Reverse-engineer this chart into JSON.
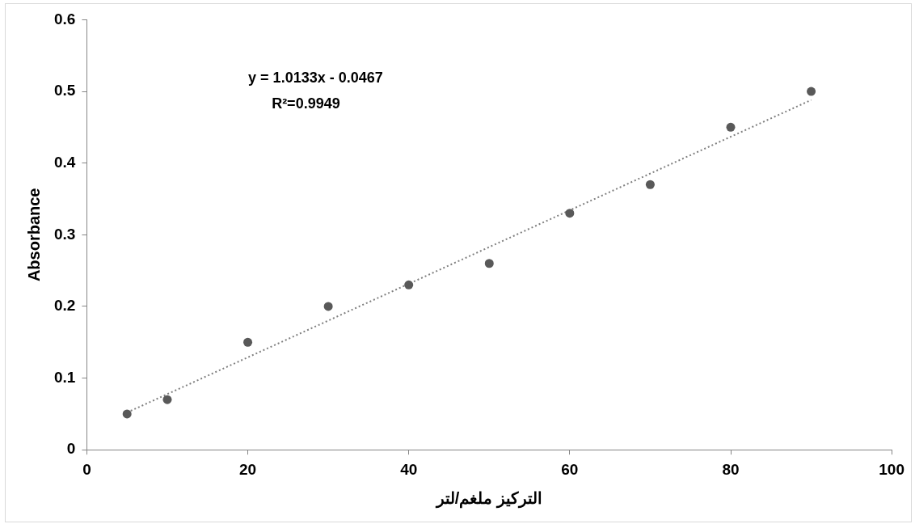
{
  "chart_data": {
    "type": "scatter",
    "xlabel": "التركيز ملغم/لتر",
    "ylabel": "Absorbance",
    "xlim": [
      0,
      100
    ],
    "xticks": [
      0,
      20,
      40,
      60,
      80,
      100
    ],
    "ylim": [
      0,
      0.6
    ],
    "yticks": [
      0,
      0.1,
      0.2,
      0.3,
      0.4,
      0.5,
      0.6
    ],
    "marker": "circle",
    "series": [
      {
        "type": "scatter",
        "color": "#595959",
        "x": [
          5,
          10,
          20,
          30,
          40,
          50,
          60,
          70,
          80,
          90
        ],
        "values": [
          0.05,
          0.07,
          0.15,
          0.2,
          0.23,
          0.26,
          0.33,
          0.37,
          0.45,
          0.5
        ]
      },
      {
        "type": "line",
        "color": "#7f7f7f",
        "line_style": "dotted",
        "marker": "none",
        "x": [
          5,
          90
        ],
        "values": [
          0.052,
          0.488
        ]
      }
    ],
    "annotations": [
      "y = 1.0133x - 0.0467",
      "R²=0.9949"
    ]
  }
}
